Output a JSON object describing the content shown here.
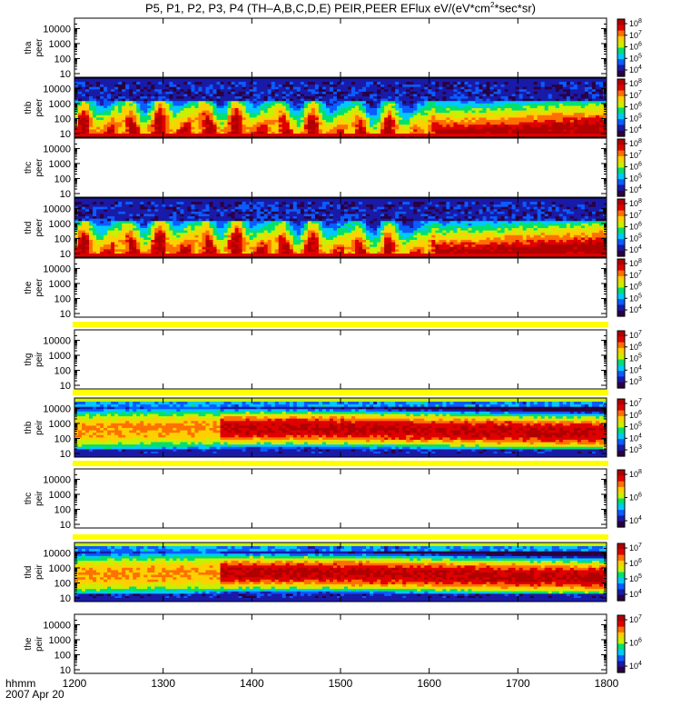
{
  "title_parts": {
    "main": "P5, P1, P2, P3, P4 (TH–A,B,C,D,E) PEIR,PEER EFlux eV/(eV*cm",
    "exp": "2",
    "tail": "*sec*sr)"
  },
  "x_axis": {
    "label": "hhmm",
    "date": "2007 Apr 20",
    "ticks": [
      "1200",
      "1300",
      "1400",
      "1500",
      "1600",
      "1700",
      "1800"
    ],
    "xlim": [
      1200,
      1800
    ]
  },
  "colors": {
    "cmap": [
      "#2a0040",
      "#1a1aa8",
      "#0a5cff",
      "#00c8ff",
      "#00e070",
      "#c8f000",
      "#ffd000",
      "#ff7000",
      "#e00000",
      "#b00000"
    ],
    "fill_bar": "#ffff00"
  },
  "chart_data": {
    "type": "heatmap",
    "scale": "log",
    "y_ticks": [
      "10000",
      "1000",
      "100",
      "10"
    ],
    "panels": [
      {
        "label": [
          "tha",
          "peer"
        ],
        "has_data": false,
        "profile": "none",
        "cbar_ticks": [
          {
            "m": "10",
            "e": "8"
          },
          {
            "m": "10",
            "e": "7"
          },
          {
            "m": "10",
            "e": "6"
          },
          {
            "m": "10",
            "e": "5"
          },
          {
            "m": "10",
            "e": "4"
          }
        ]
      },
      {
        "label": [
          "thb",
          "peer"
        ],
        "has_data": true,
        "profile": "peer",
        "cbar_ticks": [
          {
            "m": "10",
            "e": "8"
          },
          {
            "m": "10",
            "e": "7"
          },
          {
            "m": "10",
            "e": "6"
          },
          {
            "m": "10",
            "e": "5"
          },
          {
            "m": "10",
            "e": "4"
          }
        ]
      },
      {
        "label": [
          "thc",
          "peer"
        ],
        "has_data": false,
        "profile": "none",
        "cbar_ticks": [
          {
            "m": "10",
            "e": "8"
          },
          {
            "m": "10",
            "e": "7"
          },
          {
            "m": "10",
            "e": "6"
          },
          {
            "m": "10",
            "e": "5"
          },
          {
            "m": "10",
            "e": "4"
          }
        ]
      },
      {
        "label": [
          "thd",
          "peer"
        ],
        "has_data": true,
        "profile": "peer",
        "cbar_ticks": [
          {
            "m": "10",
            "e": "8"
          },
          {
            "m": "10",
            "e": "7"
          },
          {
            "m": "10",
            "e": "6"
          },
          {
            "m": "10",
            "e": "5"
          },
          {
            "m": "10",
            "e": "4"
          }
        ]
      },
      {
        "label": [
          "the",
          "peer"
        ],
        "has_data": false,
        "profile": "none",
        "cbar_ticks": [
          {
            "m": "10",
            "e": "8"
          },
          {
            "m": "10",
            "e": "7"
          },
          {
            "m": "10",
            "e": "6"
          },
          {
            "m": "10",
            "e": "5"
          },
          {
            "m": "10",
            "e": "4"
          }
        ]
      },
      {
        "label": [
          "thg",
          "peir"
        ],
        "has_data": false,
        "profile": "none",
        "cbar_ticks": [
          {
            "m": "10",
            "e": "7"
          },
          {
            "m": "10",
            "e": "6"
          },
          {
            "m": "10",
            "e": "5"
          },
          {
            "m": "10",
            "e": "4"
          },
          {
            "m": "10",
            "e": "3"
          }
        ]
      },
      {
        "label": [
          "thb",
          "peir"
        ],
        "has_data": true,
        "profile": "peir",
        "cbar_ticks": [
          {
            "m": "10",
            "e": "7"
          },
          {
            "m": "10",
            "e": "6"
          },
          {
            "m": "10",
            "e": "5"
          },
          {
            "m": "10",
            "e": "4"
          },
          {
            "m": "10",
            "e": "3"
          }
        ]
      },
      {
        "label": [
          "thc",
          "peir"
        ],
        "has_data": false,
        "profile": "none",
        "cbar_ticks": [
          {
            "m": "10",
            "e": "8"
          },
          {
            "m": "10",
            "e": "6"
          },
          {
            "m": "10",
            "e": "4"
          }
        ]
      },
      {
        "label": [
          "thd",
          "peir"
        ],
        "has_data": true,
        "profile": "peir",
        "cbar_ticks": [
          {
            "m": "10",
            "e": "7"
          },
          {
            "m": "10",
            "e": "6"
          },
          {
            "m": "10",
            "e": "5"
          },
          {
            "m": "10",
            "e": "4"
          }
        ]
      },
      {
        "label": [
          "the",
          "peir"
        ],
        "has_data": false,
        "profile": "none",
        "cbar_ticks": [
          {
            "m": "10",
            "e": "7"
          },
          {
            "m": "10",
            "e": "6"
          },
          {
            "m": "10",
            "e": "4"
          }
        ]
      }
    ]
  }
}
